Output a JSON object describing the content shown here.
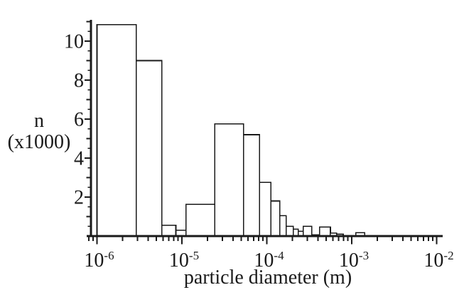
{
  "figure": {
    "background_color": "#ffffff",
    "line_color": "#1a1a1a",
    "bar_fill_color": "#ffffff"
  },
  "chart_data": {
    "type": "bar",
    "subtype": "histogram",
    "title": "",
    "xlabel": "particle diameter (m)",
    "ylabel": "n (x1000)",
    "ylabel_lines": [
      "n",
      "(x1000)"
    ],
    "x_scale": "log",
    "y_scale": "linear",
    "xlim": [
      8e-07,
      0.012
    ],
    "ylim": [
      0,
      11.1
    ],
    "grid": false,
    "legend": "none",
    "y_major_ticks": [
      {
        "value": 2,
        "label": "2"
      },
      {
        "value": 4,
        "label": "4"
      },
      {
        "value": 6,
        "label": "6"
      },
      {
        "value": 8,
        "label": "8"
      },
      {
        "value": 10,
        "label": "10"
      }
    ],
    "y_minor_tick_step": 0.5,
    "x_major_ticks": [
      {
        "value": 1e-06,
        "mantissa": "10",
        "exponent": "-6"
      },
      {
        "value": 1e-05,
        "mantissa": "10",
        "exponent": "-5"
      },
      {
        "value": 0.0001,
        "mantissa": "10",
        "exponent": "-4"
      },
      {
        "value": 0.001,
        "mantissa": "10",
        "exponent": "-3"
      },
      {
        "value": 0.01,
        "mantissa": "10",
        "exponent": "-2"
      }
    ],
    "x_minor_tick_multipliers": [
      2,
      3,
      4,
      5,
      6,
      7,
      8,
      9
    ],
    "x_extra_minor_ticks": [
      8e-07,
      9e-07
    ],
    "bins": [
      {
        "d_min": 1e-06,
        "d_max": 2.9e-06,
        "n": 10.85
      },
      {
        "d_min": 2.9e-06,
        "d_max": 5.8e-06,
        "n": 9.0
      },
      {
        "d_min": 5.8e-06,
        "d_max": 8.5e-06,
        "n": 0.55
      },
      {
        "d_min": 8.5e-06,
        "d_max": 1.12e-05,
        "n": 0.3
      },
      {
        "d_min": 1.12e-05,
        "d_max": 2.44e-05,
        "n": 1.62
      },
      {
        "d_min": 2.44e-05,
        "d_max": 5.3e-05,
        "n": 5.75
      },
      {
        "d_min": 5.3e-05,
        "d_max": 8.2e-05,
        "n": 5.2
      },
      {
        "d_min": 8.2e-05,
        "d_max": 0.000112,
        "n": 2.76
      },
      {
        "d_min": 0.000112,
        "d_max": 0.000142,
        "n": 1.8
      },
      {
        "d_min": 0.000142,
        "d_max": 0.000169,
        "n": 1.05
      },
      {
        "d_min": 0.000169,
        "d_max": 0.000205,
        "n": 0.5
      },
      {
        "d_min": 0.000205,
        "d_max": 0.000234,
        "n": 0.36
      },
      {
        "d_min": 0.000234,
        "d_max": 0.000268,
        "n": 0.24
      },
      {
        "d_min": 0.000268,
        "d_max": 0.000338,
        "n": 0.5
      },
      {
        "d_min": 0.000338,
        "d_max": 0.000419,
        "n": 0.07
      },
      {
        "d_min": 0.000419,
        "d_max": 0.00056,
        "n": 0.47
      },
      {
        "d_min": 0.00056,
        "d_max": 0.000666,
        "n": 0.15
      },
      {
        "d_min": 0.000666,
        "d_max": 0.000793,
        "n": 0.1
      },
      {
        "d_min": 0.00112,
        "d_max": 0.00142,
        "n": 0.18
      }
    ]
  }
}
